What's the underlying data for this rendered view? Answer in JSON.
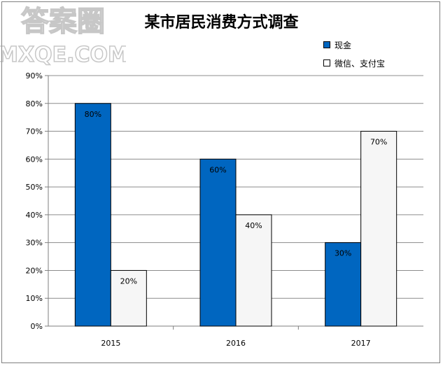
{
  "chart_data": {
    "type": "bar",
    "title": "某市居民消费方式调查",
    "categories": [
      "2015",
      "2016",
      "2017"
    ],
    "series": [
      {
        "name": "现金",
        "values": [
          80,
          60,
          30
        ],
        "color": "#0066c0"
      },
      {
        "name": "微信、支付宝",
        "values": [
          20,
          40,
          70
        ],
        "color": "#f6f6f6"
      }
    ],
    "data_labels": [
      [
        "80%",
        "60%",
        "30%"
      ],
      [
        "20%",
        "40%",
        "70%"
      ]
    ],
    "y_ticks": [
      "0%",
      "10%",
      "20%",
      "30%",
      "40%",
      "50%",
      "60%",
      "70%",
      "80%",
      "90%"
    ],
    "ylim": [
      0,
      90
    ],
    "grid": true,
    "legend": "top-right"
  },
  "watermark": {
    "line1": "答案圈",
    "line2": "MXQE.COM"
  }
}
